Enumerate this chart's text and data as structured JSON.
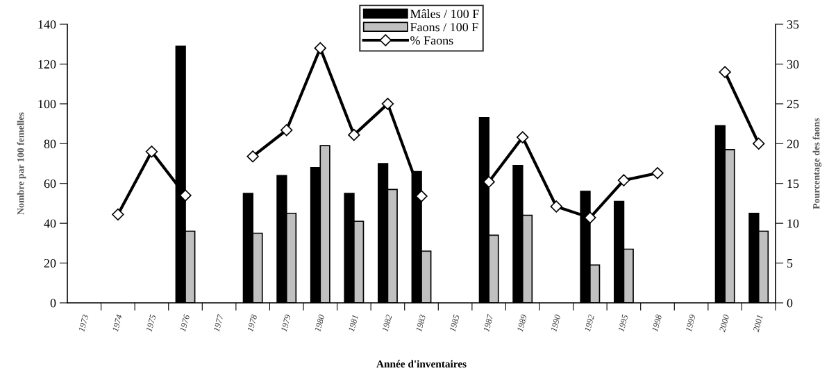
{
  "chart_data": {
    "type": "bar",
    "xlabel": "Année d'inventaires",
    "ylabel": "Nombre par 100 femelles",
    "y2label": "Pourcentage des faons",
    "categories": [
      "1973",
      "1974",
      "1975",
      "1976",
      "1977",
      "1978",
      "1979",
      "1980",
      "1981",
      "1982",
      "1983",
      "1985",
      "1987",
      "1989",
      "1990",
      "1992",
      "1995",
      "1998",
      "1999",
      "2000",
      "2001"
    ],
    "series": [
      {
        "name": "Mâles / 100 F",
        "color": "#000000",
        "values": [
          null,
          null,
          null,
          129,
          null,
          55,
          64,
          68,
          55,
          70,
          66,
          null,
          93,
          69,
          null,
          56,
          51,
          null,
          null,
          89,
          45
        ]
      },
      {
        "name": "Faons / 100 F",
        "color": "#c0c0c0",
        "values": [
          null,
          null,
          null,
          36,
          null,
          35,
          45,
          79,
          41,
          57,
          26,
          null,
          34,
          44,
          null,
          19,
          27,
          null,
          null,
          77,
          36
        ]
      },
      {
        "name": "% Faons",
        "type": "line",
        "axis": "y2",
        "color": "#000000",
        "marker": "diamond",
        "values": [
          null,
          11.1,
          19,
          13.5,
          null,
          18.4,
          21.7,
          32,
          21.1,
          25,
          13.4,
          null,
          15.2,
          20.8,
          12.1,
          10.7,
          15.4,
          16.3,
          null,
          29,
          20
        ]
      }
    ],
    "ylim": [
      0,
      140
    ],
    "yticks": [
      0,
      20,
      40,
      60,
      80,
      100,
      120,
      140
    ],
    "y2lim": [
      0,
      35
    ],
    "y2ticks": [
      0,
      5,
      10,
      15,
      20,
      25,
      30,
      35
    ],
    "grid": false,
    "legend": "top"
  }
}
